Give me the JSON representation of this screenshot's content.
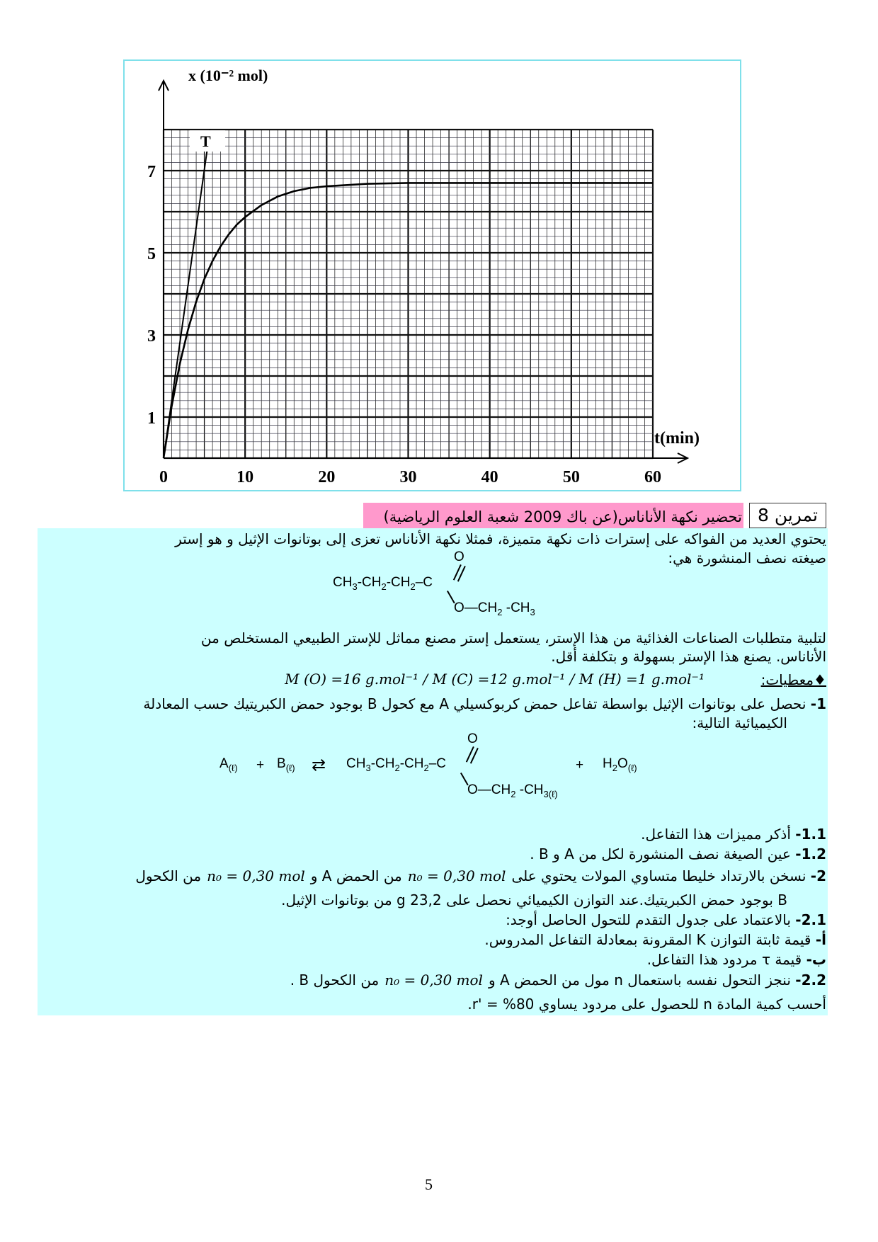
{
  "chart_data": {
    "type": "line",
    "ylabel": "x (10⁻² mol)",
    "xlabel": "t(min)",
    "xlim": [
      0,
      60
    ],
    "ylim": [
      0,
      8
    ],
    "xticks": [
      "0",
      "10",
      "20",
      "30",
      "40",
      "50",
      "60"
    ],
    "yticks": [
      "1",
      "3",
      "5",
      "7"
    ],
    "grid": true,
    "x": [
      0,
      1,
      2,
      3,
      4,
      5,
      6,
      7,
      8,
      9,
      10,
      12,
      14,
      16,
      18,
      20,
      25,
      30,
      35,
      40,
      45,
      50,
      55,
      60
    ],
    "series": [
      {
        "values": [
          0,
          1.27,
          2.3,
          3.13,
          3.81,
          4.36,
          4.8,
          5.16,
          5.45,
          5.69,
          5.87,
          6.16,
          6.37,
          6.5,
          6.58,
          6.62,
          6.68,
          6.7,
          6.7,
          6.7,
          6.7,
          6.7,
          6.7,
          6.7
        ]
      }
    ],
    "tangent": {
      "label": "T",
      "x": [
        0,
        5.7
      ],
      "y": [
        0,
        8
      ]
    }
  },
  "exercise": {
    "number_label": "تمرين 8",
    "title": "تحضير نكهة الأناناس(عن باك 2009 شعبة العلوم الرياضية)"
  },
  "intro": {
    "line1": "يحتوي العديد من الفواكه على إسترات ذات نكهة متميزة، فمثلا نكهة الأناناس تعزى إلى بوتانوات الإثيل و هو إستر",
    "line2": "صيغته نصف المنشورة هي:"
  },
  "formula_ester": {
    "chain": [
      [
        "CH",
        "3"
      ],
      [
        "-CH",
        "2"
      ],
      [
        "-CH",
        "2"
      ],
      [
        "–C",
        ""
      ]
    ],
    "carbonyl_o": "O",
    "ester_group": [
      [
        "O—CH",
        "2"
      ],
      [
        " -CH",
        "3"
      ]
    ]
  },
  "para2": {
    "line1": "لتلبية متطلبات الصناعات الغذائية من هذا الإستر، يستعمل إستر مصنع مماثل للإستر الطبيعي المستخلص من",
    "line2": "الأناناس. يصنع هذا الإستر بسهولة و بتكلفة أقل."
  },
  "givens": {
    "label": "♦معطيات:",
    "values": "M (O) =16 g.mol⁻¹ / M (C) =12 g.mol⁻¹ / M (H) =1 g.mol⁻¹"
  },
  "q1": {
    "num": "1-",
    "line1": "نحصل على بوتانوات الإثيل بواسطة تفاعل حمض كربوكسيلي A مع كحول B بوجود حمض الكبريتيك حسب المعادلة",
    "line2": "الكيميائية التالية:"
  },
  "equation": {
    "reactant_a": [
      [
        "A",
        "(ℓ)"
      ]
    ],
    "plus1": "+",
    "reactant_b": [
      [
        "B",
        "(ℓ)"
      ]
    ],
    "arrow": "⇄",
    "chain": [
      [
        "CH",
        "3"
      ],
      [
        "-CH",
        "2"
      ],
      [
        "-CH",
        "2"
      ],
      [
        "–C",
        ""
      ]
    ],
    "carbonyl_o": "O",
    "ester_group": [
      [
        "O—CH",
        "2"
      ],
      [
        " -CH",
        "3(ℓ)"
      ]
    ],
    "plus2": "+",
    "water": [
      [
        "H",
        "2"
      ],
      [
        "O",
        "(ℓ)"
      ]
    ]
  },
  "questions": [
    {
      "num": "1.1-",
      "text": "أذكر مميزات هذا التفاعل."
    },
    {
      "num": "1.2-",
      "text": "عين الصيغة نصف المنشورة لكل من A و B ."
    }
  ],
  "q2": {
    "num": "2-",
    "part1": "نسخن بالارتداد خليطا متساوي المولات يحتوي على",
    "math1": "n₀ = 0,30 mol",
    "part2": "من الحمض A و",
    "math2": "n₀ = 0,30 mol",
    "part3": "من الكحول",
    "line2": "B بوجود حمض الكبريتيك.عند التوازن الكيميائي نحصل على 23,2 g من بوتانوات الإثيل."
  },
  "q21": {
    "num": "2.1-",
    "text": "بالاعتماد على جدول التقدم للتحول الحاصل أوجد:"
  },
  "q21a": {
    "num": "أ-",
    "text": "قيمة ثابتة التوازن K المقرونة بمعادلة التفاعل المدروس."
  },
  "q21b": {
    "num": "ب-",
    "text": "قيمة τ مردود هذا التفاعل."
  },
  "q22": {
    "num": "2.2-",
    "part1": "ننجز التحول نفسه باستعمال n مول من الحمض A و",
    "math": "n₀ = 0,30 mol",
    "part2": "من الكحول B ."
  },
  "q22b": {
    "text": "أحسب كمية المادة n للحصول على مردود يساوي 80% = 'r."
  },
  "page_number": "5"
}
